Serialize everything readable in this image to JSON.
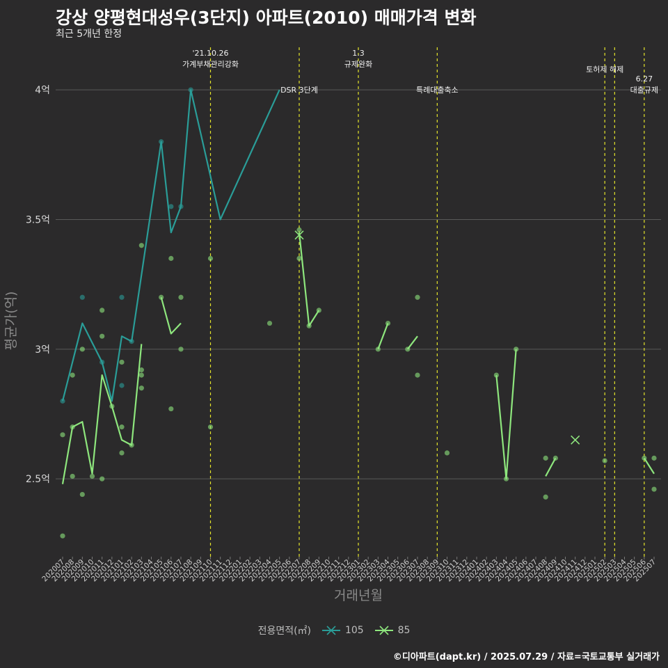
{
  "title": "강상 양평현대성우(3단지) 아파트(2010) 매매가격 변화",
  "subtitle": "최근 5개년 한정",
  "caption": "©디아파트(dapt.kr) / 2025.07.29 / 자료=국토교통부 실거래가",
  "colors": {
    "s105": "#2a9d98",
    "s85": "#8ee67d",
    "event": "#e5e52a",
    "grid": "#5a5a5a",
    "bg": "#2b2a2b"
  },
  "chart_data": {
    "type": "line",
    "xlabel": "거래년월",
    "ylabel": "평균가(억)",
    "x": [
      "202007",
      "202008",
      "202009",
      "202010",
      "202011",
      "202012",
      "202101",
      "202102",
      "202103",
      "202104",
      "202105",
      "202106",
      "202107",
      "202108",
      "202109",
      "202110",
      "202111",
      "202112",
      "202201",
      "202202",
      "202203",
      "202204",
      "202205",
      "202206",
      "202207",
      "202208",
      "202209",
      "202210",
      "202211",
      "202212",
      "202301",
      "202302",
      "202303",
      "202304",
      "202305",
      "202306",
      "202307",
      "202308",
      "202309",
      "202310",
      "202311",
      "202312",
      "202401",
      "202402",
      "202403",
      "202404",
      "202405",
      "202406",
      "202407",
      "202408",
      "202409",
      "202410",
      "202411",
      "202412",
      "202501",
      "202502",
      "202503",
      "202504",
      "202505",
      "202506",
      "202507"
    ],
    "ylim": [
      2.2,
      4.18
    ],
    "yticks": [
      {
        "value": 2.5,
        "label": "2.5억"
      },
      {
        "value": 3.0,
        "label": "3억"
      },
      {
        "value": 3.5,
        "label": "3.5억"
      },
      {
        "value": 4.0,
        "label": "4억"
      }
    ],
    "legend_title": "전용면적(㎡)",
    "series": [
      {
        "name": "105",
        "color": "#2a9d98",
        "line": [
          [
            "202007",
            2.8
          ],
          [
            "202009",
            3.1
          ],
          [
            "202011",
            2.95
          ],
          [
            "202012",
            2.8
          ],
          [
            "202101",
            3.05
          ],
          [
            "202102",
            3.03
          ],
          [
            "202105",
            3.8
          ],
          [
            "202106",
            3.45
          ],
          [
            "202107",
            3.55
          ],
          [
            "202108",
            4.0
          ],
          [
            "202111",
            3.5
          ],
          [
            "202205",
            4.0
          ]
        ],
        "points": [
          [
            "202007",
            2.8
          ],
          [
            "202009",
            3.2
          ],
          [
            "202011",
            2.95
          ],
          [
            "202101",
            3.2
          ],
          [
            "202101",
            2.86
          ],
          [
            "202102",
            3.03
          ],
          [
            "202105",
            3.8
          ],
          [
            "202106",
            3.55
          ],
          [
            "202107",
            3.55
          ],
          [
            "202108",
            4.0
          ]
        ],
        "crosses": []
      },
      {
        "name": "85",
        "color": "#8ee67d",
        "line": [
          [
            "202007",
            2.48
          ],
          [
            "202008",
            2.7
          ],
          [
            "202009",
            2.72
          ],
          [
            "202010",
            2.52
          ],
          [
            "202011",
            2.9
          ],
          [
            "202012",
            2.78
          ],
          [
            "202101",
            2.65
          ],
          [
            "202102",
            2.63
          ],
          [
            "202103",
            3.02
          ],
          null,
          [
            "202105",
            3.2
          ],
          [
            "202106",
            3.06
          ],
          [
            "202107",
            3.1
          ],
          null,
          [
            "202207",
            3.45
          ],
          [
            "202208",
            3.09
          ],
          [
            "202209",
            3.15
          ],
          null,
          [
            "202303",
            3.0
          ],
          [
            "202304",
            3.1
          ],
          null,
          [
            "202306",
            3.0
          ],
          [
            "202307",
            3.05
          ],
          null,
          [
            "202403",
            2.9
          ],
          [
            "202404",
            2.5
          ],
          [
            "202405",
            3.0
          ],
          null,
          [
            "202408",
            2.51
          ],
          [
            "202409",
            2.58
          ],
          null,
          [
            "202506",
            2.58
          ],
          [
            "202507",
            2.52
          ]
        ],
        "points": [
          [
            "202007",
            2.67
          ],
          [
            "202007",
            2.28
          ],
          [
            "202008",
            2.9
          ],
          [
            "202008",
            2.51
          ],
          [
            "202008",
            2.7
          ],
          [
            "202009",
            3.0
          ],
          [
            "202009",
            2.44
          ],
          [
            "202010",
            2.51
          ],
          [
            "202011",
            3.15
          ],
          [
            "202011",
            3.05
          ],
          [
            "202011",
            2.5
          ],
          [
            "202012",
            2.78
          ],
          [
            "202101",
            2.95
          ],
          [
            "202101",
            2.7
          ],
          [
            "202101",
            2.6
          ],
          [
            "202102",
            2.63
          ],
          [
            "202103",
            3.4
          ],
          [
            "202103",
            2.92
          ],
          [
            "202103",
            2.9
          ],
          [
            "202103",
            2.85
          ],
          [
            "202105",
            3.2
          ],
          [
            "202106",
            3.35
          ],
          [
            "202106",
            2.77
          ],
          [
            "202107",
            3.2
          ],
          [
            "202107",
            3.0
          ],
          [
            "202110",
            3.35
          ],
          [
            "202110",
            2.7
          ],
          [
            "202204",
            3.1
          ],
          [
            "202207",
            3.35
          ],
          [
            "202207",
            3.46
          ],
          [
            "202208",
            3.09
          ],
          [
            "202209",
            3.15
          ],
          [
            "202303",
            3.0
          ],
          [
            "202304",
            3.1
          ],
          [
            "202306",
            3.0
          ],
          [
            "202307",
            3.2
          ],
          [
            "202307",
            2.9
          ],
          [
            "202310",
            2.6
          ],
          [
            "202403",
            2.9
          ],
          [
            "202404",
            2.5
          ],
          [
            "202405",
            3.0
          ],
          [
            "202408",
            2.58
          ],
          [
            "202408",
            2.43
          ],
          [
            "202409",
            2.58
          ],
          [
            "202502",
            2.57
          ],
          [
            "202506",
            2.58
          ],
          [
            "202507",
            2.58
          ],
          [
            "202507",
            2.46
          ]
        ],
        "crosses": [
          [
            "202207",
            3.44
          ],
          [
            "202411",
            2.65
          ]
        ]
      }
    ],
    "events": [
      {
        "x": "202110",
        "label": [
          "'21.10.26",
          "가계부채관리강화"
        ],
        "label_y": 4.1
      },
      {
        "x": "202207",
        "label": [
          "DSR 3단계"
        ],
        "label_y": 4.0
      },
      {
        "x": "202301",
        "label": [
          "1.3",
          "규제완화"
        ],
        "label_y": 4.1
      },
      {
        "x": "202309",
        "label": [
          "특례대출축소"
        ],
        "label_y": 4.0
      },
      {
        "x": "202502",
        "label": [
          "토허제 해제"
        ],
        "label_y": 4.08
      },
      {
        "x": "202503",
        "label": [],
        "label_y": 4.08
      },
      {
        "x": "202506",
        "label": [
          "6.27",
          "대출규제"
        ],
        "label_y": 4.0
      }
    ]
  }
}
